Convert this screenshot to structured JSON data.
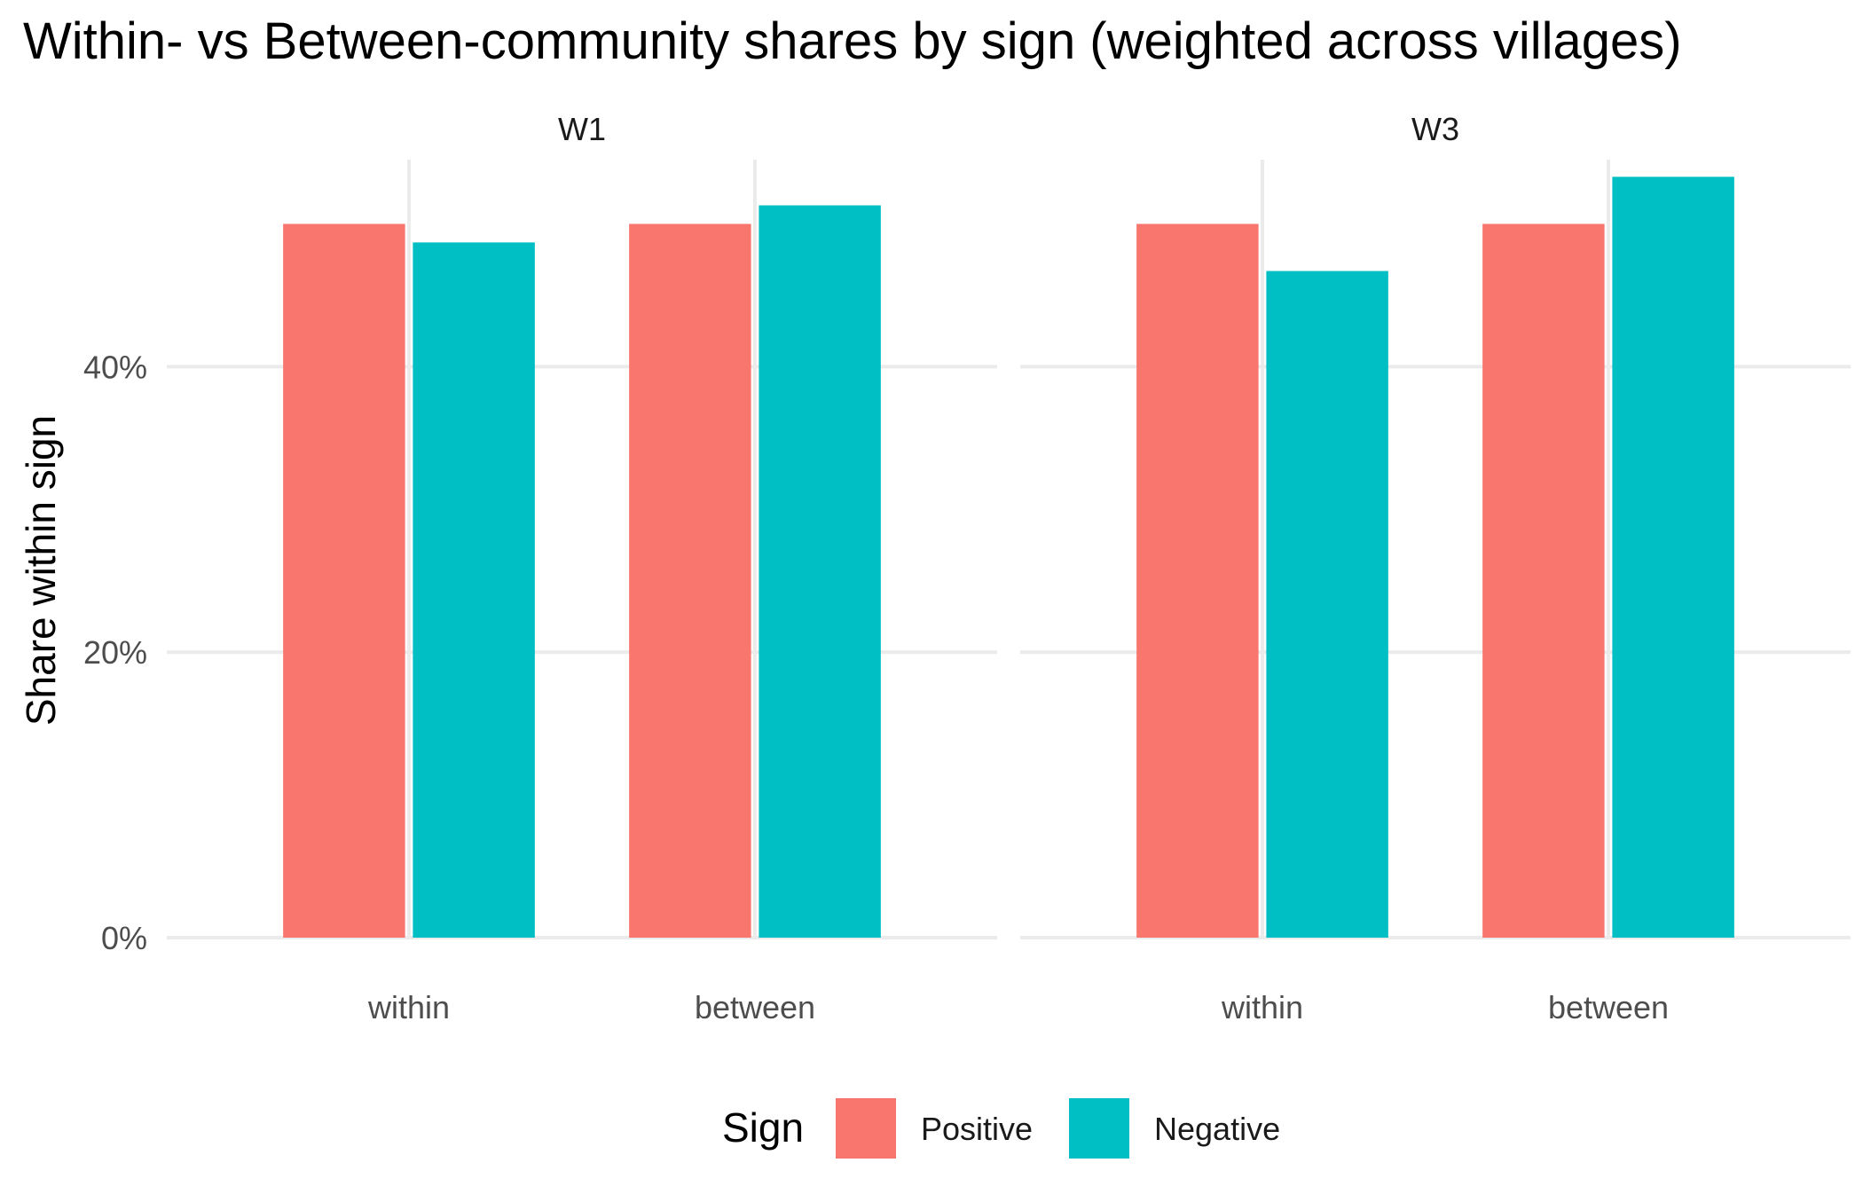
{
  "chart_data": {
    "type": "bar",
    "title": "Within- vs Between-community shares by sign (weighted across villages)",
    "ylabel": "Share within sign",
    "xlabel": "",
    "ylim": [
      0,
      0.545
    ],
    "yticks": [
      {
        "value": 0,
        "label": "0%"
      },
      {
        "value": 0.2,
        "label": "20%"
      },
      {
        "value": 0.4,
        "label": "40%"
      }
    ],
    "categories": [
      "within",
      "between"
    ],
    "legend": {
      "title": "Sign",
      "position": "bottom",
      "entries": [
        {
          "name": "Positive",
          "color": "#F8766D"
        },
        {
          "name": "Negative",
          "color": "#00BFC4"
        }
      ]
    },
    "facets": [
      {
        "label": "W1",
        "series": [
          {
            "name": "Positive",
            "values": [
              0.5,
              0.5
            ]
          },
          {
            "name": "Negative",
            "values": [
              0.487,
              0.513
            ]
          }
        ]
      },
      {
        "label": "W3",
        "series": [
          {
            "name": "Positive",
            "values": [
              0.5,
              0.5
            ]
          },
          {
            "name": "Negative",
            "values": [
              0.467,
              0.533
            ]
          }
        ]
      }
    ]
  }
}
